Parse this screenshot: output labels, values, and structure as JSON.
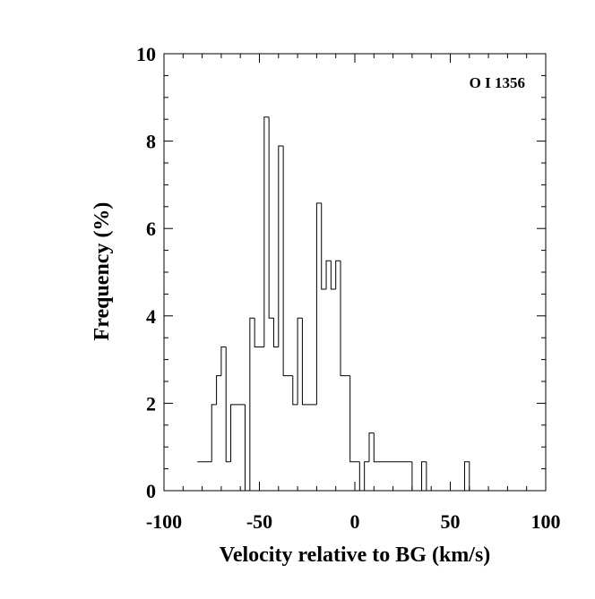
{
  "chart_data": {
    "type": "histogram",
    "title": "",
    "xlabel": "Velocity relative to BG (km/s)",
    "ylabel": "Frequency (%)",
    "annotation": "O I 1356",
    "xlim": [
      -100,
      100
    ],
    "ylim": [
      0,
      10
    ],
    "x_ticks": [
      -100,
      -50,
      0,
      50,
      100
    ],
    "x_tick_labels": [
      "-100",
      "-50",
      "0",
      "50",
      "100"
    ],
    "y_ticks": [
      0,
      2,
      4,
      6,
      8,
      10
    ],
    "y_tick_labels": [
      "0",
      "2",
      "4",
      "6",
      "8",
      "10"
    ],
    "bin_width": 2.5,
    "bins": [
      {
        "x0": -82.5,
        "x1": -75.0,
        "y": 0.66
      },
      {
        "x0": -75.0,
        "x1": -72.5,
        "y": 1.97
      },
      {
        "x0": -72.5,
        "x1": -70.0,
        "y": 2.63
      },
      {
        "x0": -70.0,
        "x1": -67.5,
        "y": 3.29
      },
      {
        "x0": -67.5,
        "x1": -65.0,
        "y": 0.66
      },
      {
        "x0": -65.0,
        "x1": -57.5,
        "y": 1.97
      },
      {
        "x0": -57.5,
        "x1": -55.0,
        "y": 0.0
      },
      {
        "x0": -55.0,
        "x1": -52.5,
        "y": 3.95
      },
      {
        "x0": -52.5,
        "x1": -47.5,
        "y": 3.29
      },
      {
        "x0": -47.5,
        "x1": -45.0,
        "y": 8.55
      },
      {
        "x0": -45.0,
        "x1": -42.5,
        "y": 3.95
      },
      {
        "x0": -42.5,
        "x1": -40.0,
        "y": 3.29
      },
      {
        "x0": -40.0,
        "x1": -37.5,
        "y": 7.89
      },
      {
        "x0": -37.5,
        "x1": -32.5,
        "y": 2.63
      },
      {
        "x0": -32.5,
        "x1": -30.0,
        "y": 1.97
      },
      {
        "x0": -30.0,
        "x1": -27.5,
        "y": 3.95
      },
      {
        "x0": -27.5,
        "x1": -20.0,
        "y": 1.97
      },
      {
        "x0": -20.0,
        "x1": -17.5,
        "y": 6.58
      },
      {
        "x0": -17.5,
        "x1": -15.0,
        "y": 4.61
      },
      {
        "x0": -15.0,
        "x1": -12.5,
        "y": 5.26
      },
      {
        "x0": -12.5,
        "x1": -10.0,
        "y": 4.61
      },
      {
        "x0": -10.0,
        "x1": -7.5,
        "y": 5.26
      },
      {
        "x0": -7.5,
        "x1": -2.5,
        "y": 2.63
      },
      {
        "x0": -2.5,
        "x1": 2.5,
        "y": 0.66
      },
      {
        "x0": 2.5,
        "x1": 5.0,
        "y": 0.0
      },
      {
        "x0": 5.0,
        "x1": 7.5,
        "y": 0.66
      },
      {
        "x0": 7.5,
        "x1": 10.0,
        "y": 1.32
      },
      {
        "x0": 10.0,
        "x1": 30.0,
        "y": 0.66
      },
      {
        "x0": 30.0,
        "x1": 35.0,
        "y": 0.0
      },
      {
        "x0": 35.0,
        "x1": 37.5,
        "y": 0.66
      },
      {
        "x0": 37.5,
        "x1": 57.5,
        "y": 0.0
      },
      {
        "x0": 57.5,
        "x1": 60.0,
        "y": 0.66
      }
    ]
  }
}
